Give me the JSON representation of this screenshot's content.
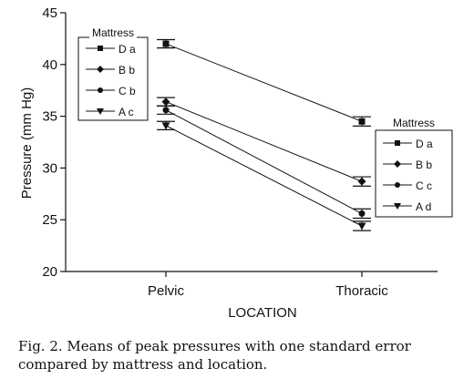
{
  "chart_data": {
    "type": "line",
    "xlabel": "LOCATION",
    "ylabel": "Pressure (mm Hg)",
    "categories": [
      "Pelvic",
      "Thoracic"
    ],
    "ylim": [
      20,
      45
    ],
    "yticks": [
      20,
      25,
      30,
      35,
      40,
      45
    ],
    "series": [
      {
        "name": "D",
        "pelvic_group": "a",
        "thoracic_group": "a",
        "marker": "square",
        "values": [
          42.0,
          34.5
        ],
        "se": [
          0.4,
          0.45
        ]
      },
      {
        "name": "B",
        "pelvic_group": "b",
        "thoracic_group": "b",
        "marker": "diamond",
        "values": [
          36.4,
          28.7
        ],
        "se": [
          0.4,
          0.45
        ]
      },
      {
        "name": "C",
        "pelvic_group": "b",
        "thoracic_group": "c",
        "marker": "circle",
        "values": [
          35.6,
          25.6
        ],
        "se": [
          0.4,
          0.45
        ]
      },
      {
        "name": "A",
        "pelvic_group": "c",
        "thoracic_group": "d",
        "marker": "triangle",
        "values": [
          34.1,
          24.4
        ],
        "se": [
          0.4,
          0.45
        ]
      }
    ],
    "legend_left": {
      "title": "Mattress",
      "entries": [
        "D a",
        "B b",
        "C b",
        "A c"
      ]
    },
    "legend_right": {
      "title": "Mattress",
      "entries": [
        "D a",
        "B b",
        "C c",
        "A d"
      ]
    }
  },
  "caption": "Fig. 2.  Means of peak pressures with one standard error compared by mattress and location."
}
